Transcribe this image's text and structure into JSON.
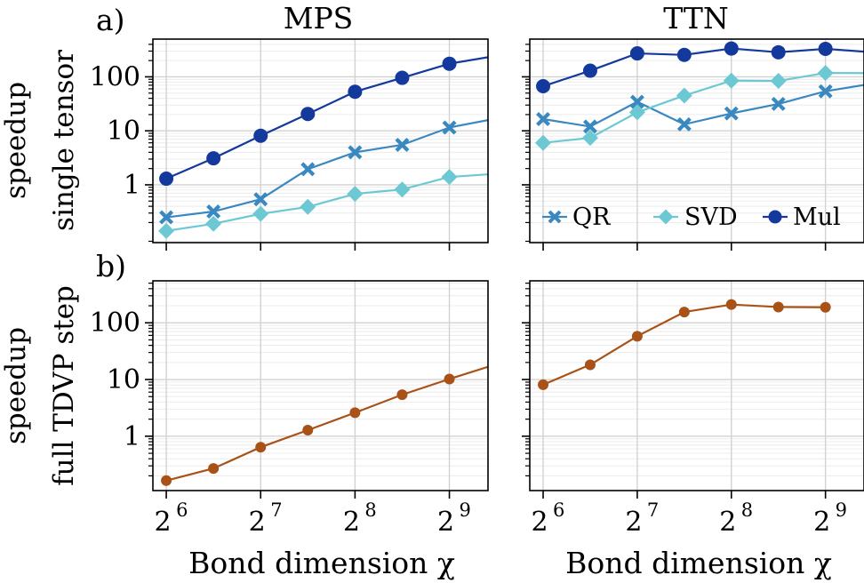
{
  "figure": {
    "col_titles": [
      "MPS",
      "TTN"
    ],
    "row_labels": [
      "a)",
      "b)"
    ],
    "ylabels": [
      [
        "speedup",
        "single tensor"
      ],
      [
        "speedup",
        "full TDVP step"
      ]
    ],
    "xlabel": "Bond dimension χ"
  },
  "chart_data": [
    {
      "type": "line",
      "panel": "a-MPS",
      "title": "MPS",
      "yscale": "log",
      "xscale": "log2",
      "ylim": [
        0.085,
        500
      ],
      "xlim": [
        58,
        680
      ],
      "yticks": [
        1,
        10,
        100
      ],
      "ytick_labels": [
        "1",
        "10",
        "100"
      ],
      "xticks": [
        64,
        128,
        256,
        512
      ],
      "xtick_labels": [
        [
          "2",
          "6"
        ],
        [
          "2",
          "7"
        ],
        [
          "2",
          "8"
        ],
        [
          "2",
          "9"
        ]
      ],
      "x": [
        64,
        90.5,
        128,
        181,
        256,
        362,
        512,
        724
      ],
      "series": [
        {
          "name": "QR",
          "color": "#3a88c0",
          "marker": "x",
          "values": [
            0.25,
            0.32,
            0.54,
            1.95,
            4.0,
            5.5,
            11.5,
            17
          ]
        },
        {
          "name": "SVD",
          "color": "#6cc9d3",
          "marker": "diamond",
          "values": [
            0.14,
            0.19,
            0.29,
            0.39,
            0.68,
            0.82,
            1.4,
            1.6
          ]
        },
        {
          "name": "Mul",
          "color": "#13399c",
          "marker": "circle",
          "values": [
            1.3,
            3.1,
            8.1,
            20.5,
            53,
            96,
            175,
            245
          ]
        }
      ],
      "grid": true
    },
    {
      "type": "line",
      "panel": "a-TTN",
      "title": "TTN",
      "yscale": "log",
      "xscale": "log2",
      "ylim": [
        0.085,
        500
      ],
      "xlim": [
        58,
        680
      ],
      "yticks": [
        1,
        10,
        100
      ],
      "ytick_labels": [
        "",
        "",
        ""
      ],
      "xticks": [
        64,
        128,
        256,
        512
      ],
      "xtick_labels": [
        [
          "2",
          "6"
        ],
        [
          "2",
          "7"
        ],
        [
          "2",
          "8"
        ],
        [
          "2",
          "9"
        ]
      ],
      "x": [
        64,
        90.5,
        128,
        181,
        256,
        362,
        512,
        724
      ],
      "series": [
        {
          "name": "QR",
          "color": "#3a88c0",
          "marker": "x",
          "values": [
            16.5,
            12,
            34.5,
            13.2,
            21,
            31.5,
            54,
            75
          ]
        },
        {
          "name": "SVD",
          "color": "#6cc9d3",
          "marker": "diamond",
          "values": [
            6,
            7.4,
            22,
            45,
            85,
            84,
            118,
            117
          ]
        },
        {
          "name": "Mul",
          "color": "#13399c",
          "marker": "circle",
          "values": [
            67,
            130,
            272,
            255,
            335,
            285,
            330,
            285
          ]
        }
      ],
      "legend": {
        "placement": "lower-center",
        "entries": [
          "QR",
          "SVD",
          "Mul"
        ]
      },
      "grid": true
    },
    {
      "type": "line",
      "panel": "b-MPS",
      "yscale": "log",
      "xscale": "log2",
      "ylim": [
        0.11,
        550
      ],
      "xlim": [
        58,
        680
      ],
      "yticks": [
        1,
        10,
        100
      ],
      "ytick_labels": [
        "1",
        "10",
        "100"
      ],
      "xticks": [
        64,
        128,
        256,
        512
      ],
      "xtick_labels": [
        [
          "2",
          "6"
        ],
        [
          "2",
          "7"
        ],
        [
          "2",
          "8"
        ],
        [
          "2",
          "9"
        ]
      ],
      "x": [
        64,
        90.5,
        128,
        181,
        256,
        362,
        512,
        724
      ],
      "series": [
        {
          "name": "full TDVP step",
          "color": "#a85217",
          "marker": "circle",
          "values": [
            0.165,
            0.27,
            0.64,
            1.28,
            2.6,
            5.4,
            10.2,
            18.7
          ]
        }
      ],
      "grid": true
    },
    {
      "type": "line",
      "panel": "b-TTN",
      "yscale": "log",
      "xscale": "log2",
      "ylim": [
        0.11,
        550
      ],
      "xlim": [
        58,
        680
      ],
      "yticks": [
        1,
        10,
        100
      ],
      "ytick_labels": [
        "",
        "",
        ""
      ],
      "xticks": [
        64,
        128,
        256,
        512
      ],
      "xtick_labels": [
        [
          "2",
          "6"
        ],
        [
          "2",
          "7"
        ],
        [
          "2",
          "8"
        ],
        [
          "2",
          "9"
        ]
      ],
      "x": [
        64,
        90.5,
        128,
        181,
        256,
        362,
        512
      ],
      "series": [
        {
          "name": "full TDVP step",
          "color": "#a85217",
          "marker": "circle",
          "values": [
            8.1,
            18.2,
            58,
            155,
            210,
            190,
            188
          ]
        }
      ],
      "grid": true
    }
  ]
}
